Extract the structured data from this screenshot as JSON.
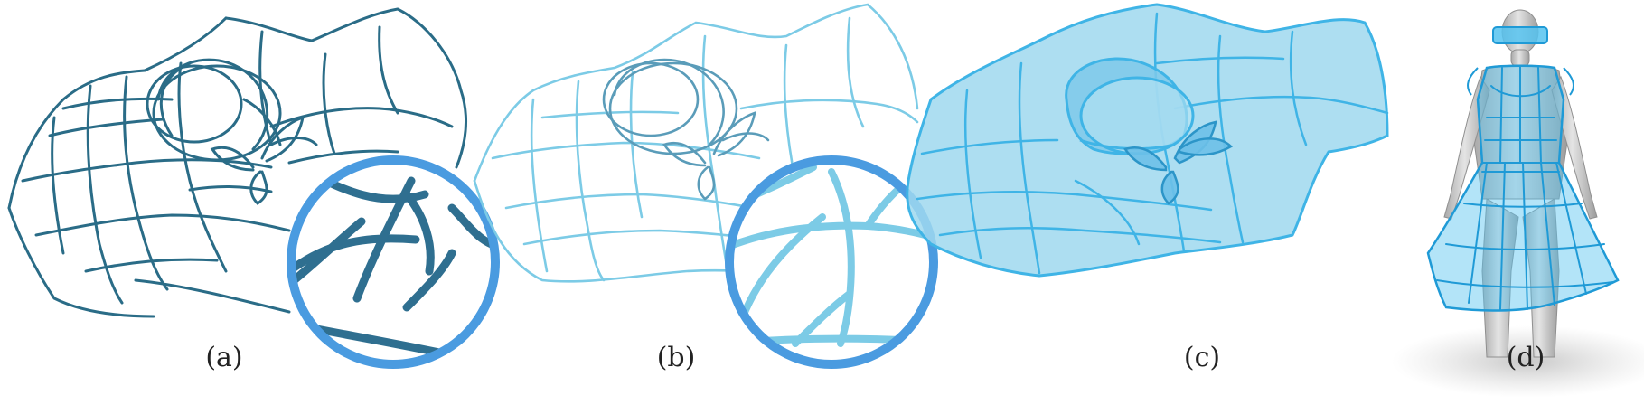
{
  "figure": {
    "panels": [
      {
        "id": "a",
        "label": "(a)"
      },
      {
        "id": "b",
        "label": "(b)"
      },
      {
        "id": "c",
        "label": "(c)"
      },
      {
        "id": "d",
        "label": "(d)"
      }
    ],
    "colors": {
      "curves_a": "#2a6c87",
      "curves_b": "#7ccbe6",
      "surface_c": "#9fd8ef",
      "edges_c": "#3fb4e6",
      "garment_d": "#56c3f0",
      "zoom_ring": "#4a9be0",
      "mannequin": "#c8c8c8"
    }
  }
}
